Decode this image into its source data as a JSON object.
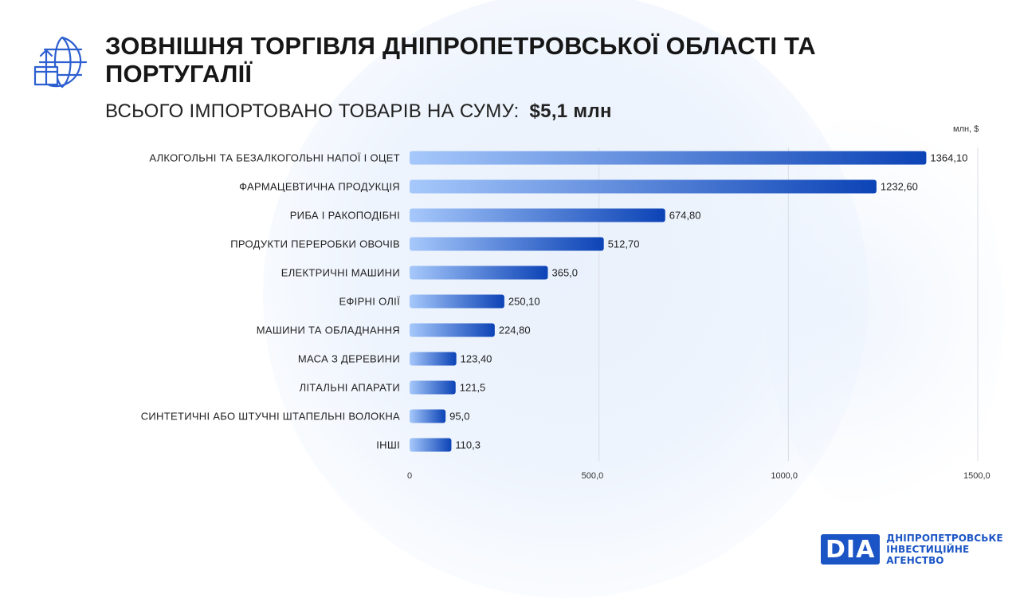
{
  "header": {
    "title": "ЗОВНІШНЯ ТОРГІВЛЯ ДНІПРОПЕТРОВСЬКОЇ ОБЛАСТІ ТА ПОРТУГАЛІЇ",
    "subtitle_label": "ВСЬОГО ІМПОРТОВАНО ТОВАРІВ НА СУМУ:",
    "subtitle_total": "$5,1 млн",
    "unit": "млн, $",
    "icon": "globe-box-upload-icon"
  },
  "chart_data": {
    "type": "bar",
    "orientation": "horizontal",
    "categories": [
      "АЛКОГОЛЬНІ ТА БЕЗАЛКОГОЛЬНІ НАПОЇ І ОЦЕТ",
      "ФАРМАЦЕВТИЧНА ПРОДУКЦІЯ",
      "РИБА І РАКОПОДІБНІ",
      "ПРОДУКТИ ПЕРЕРОБКИ ОВОЧІВ",
      "ЕЛЕКТРИЧНІ МАШИНИ",
      "ЕФІРНІ ОЛІЇ",
      "МАШИНИ ТА ОБЛАДНАННЯ",
      "МАСА З ДЕРЕВИНИ",
      "ЛІТАЛЬНІ АПАРАТИ",
      "СИНТЕТИЧНІ АБО ШТУЧНІ ШТАПЕЛЬНІ ВОЛОКНА",
      "ІНШІ"
    ],
    "values": [
      1364.1,
      1232.6,
      674.8,
      512.7,
      365.0,
      250.1,
      224.8,
      123.4,
      121.5,
      95.0,
      110.3
    ],
    "value_labels": [
      "1364,10",
      "1232,60",
      "674,80",
      "512,70",
      "365,0",
      "250,10",
      "224,80",
      "123,40",
      "121,5",
      "95,0",
      "110,3"
    ],
    "x_ticks": [
      0,
      500,
      1000,
      1500
    ],
    "x_tick_labels": [
      "0",
      "500,0",
      "1000,0",
      "1500,0"
    ],
    "xlim": [
      0,
      1500
    ],
    "grid": true,
    "colors": {
      "bar_start": "#a6c8fb",
      "bar_end": "#0c43b6",
      "grid": "#d9dde4"
    }
  },
  "footer": {
    "logo_mark": "DIA",
    "logo_line1": "ДНІПРОПЕТРОВСЬКЕ",
    "logo_line2": "ІНВЕСТИЦІЙНЕ АГЕНСТВО",
    "brand_color": "#1b55c5"
  }
}
